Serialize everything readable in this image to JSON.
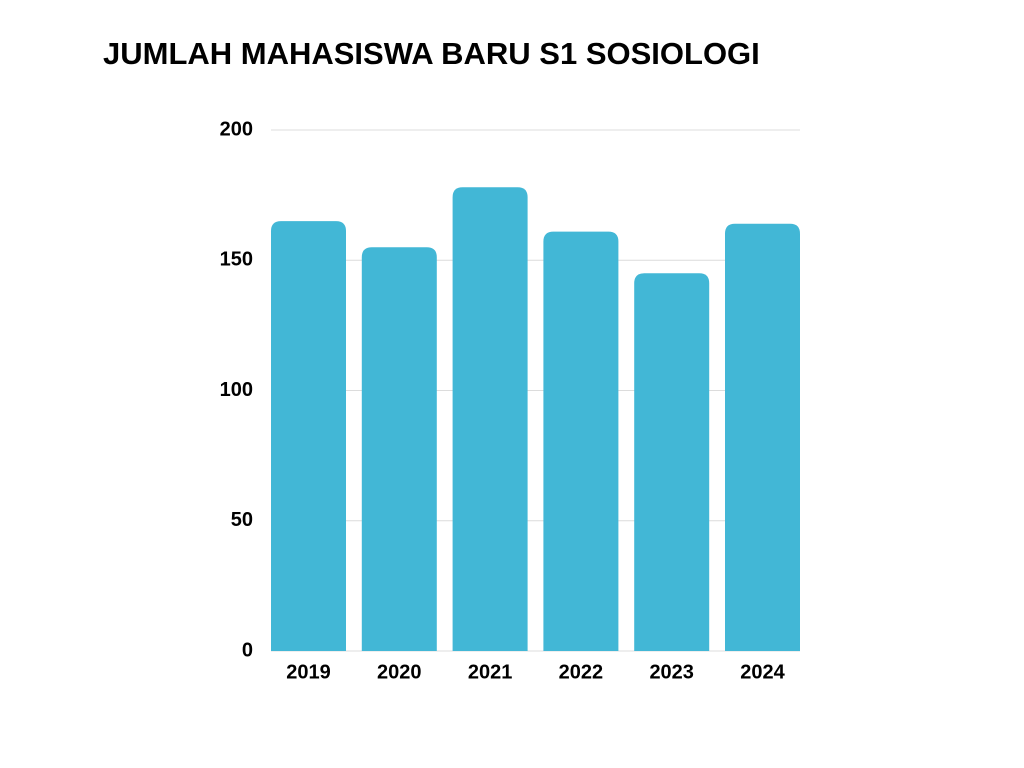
{
  "chart_data": {
    "type": "bar",
    "title": "JUMLAH MAHASISWA BARU S1 SOSIOLOGI",
    "categories": [
      "2019",
      "2020",
      "2021",
      "2022",
      "2023",
      "2024"
    ],
    "values": [
      165,
      155,
      178,
      161,
      145,
      164
    ],
    "color": "#42b7d6",
    "ylim": [
      0,
      200
    ],
    "yticks": [
      0,
      50,
      100,
      150,
      200
    ],
    "grid": true
  }
}
